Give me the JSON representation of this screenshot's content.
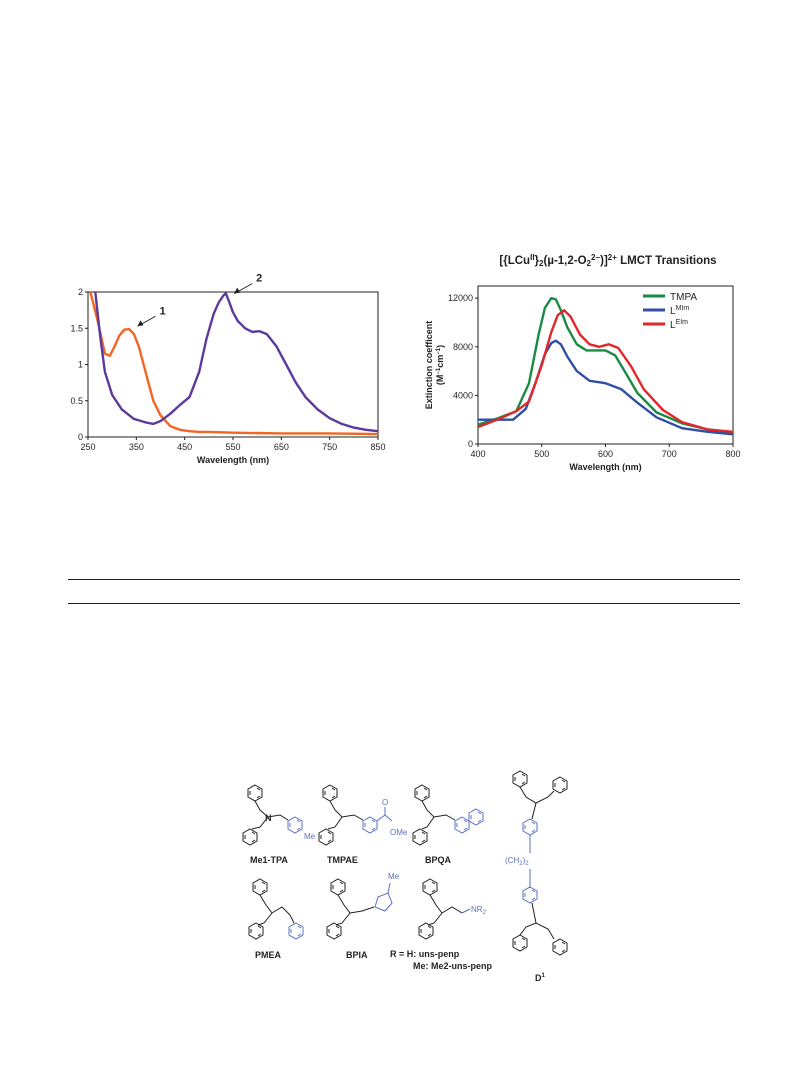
{
  "figures": {
    "left_chart": {
      "chart_data": {
        "type": "line",
        "title": "",
        "xlabel": "Wavelength (nm)",
        "ylabel": "",
        "xlim": [
          250,
          850
        ],
        "ylim": [
          0,
          2
        ],
        "xticks": [
          "250",
          "350",
          "450",
          "550",
          "650",
          "750",
          "850"
        ],
        "yticks": [
          "0",
          "0.5",
          "1",
          "1.5",
          "2"
        ],
        "grid": false,
        "series": [
          {
            "name": "1",
            "color": "#f26522",
            "x": [
              255,
              270,
              285,
              295,
              305,
              315,
              325,
              335,
              345,
              355,
              365,
              375,
              385,
              400,
              420,
              440,
              460,
              480,
              500,
              550,
              650,
              750,
              850
            ],
            "y": [
              2.0,
              1.6,
              1.15,
              1.12,
              1.25,
              1.4,
              1.48,
              1.49,
              1.42,
              1.25,
              1.0,
              0.75,
              0.5,
              0.3,
              0.15,
              0.1,
              0.08,
              0.07,
              0.07,
              0.06,
              0.05,
              0.05,
              0.04
            ]
          },
          {
            "name": "2",
            "color": "#5b3a9e",
            "x": [
              265,
              275,
              285,
              300,
              320,
              345,
              370,
              385,
              400,
              420,
              440,
              460,
              480,
              495,
              510,
              520,
              530,
              535,
              540,
              550,
              560,
              575,
              590,
              605,
              620,
              640,
              660,
              680,
              700,
              725,
              750,
              775,
              800,
              825,
              850
            ],
            "y": [
              2.0,
              1.4,
              0.9,
              0.58,
              0.38,
              0.25,
              0.2,
              0.18,
              0.22,
              0.32,
              0.44,
              0.55,
              0.9,
              1.35,
              1.7,
              1.85,
              1.95,
              1.98,
              1.9,
              1.72,
              1.6,
              1.5,
              1.45,
              1.46,
              1.42,
              1.25,
              1.0,
              0.75,
              0.55,
              0.38,
              0.26,
              0.18,
              0.13,
              0.1,
              0.08
            ]
          }
        ],
        "annotations": [
          {
            "text": "1",
            "x": 340,
            "y": 1.5
          },
          {
            "text": "2",
            "x": 540,
            "y": 1.95
          }
        ]
      }
    },
    "right_chart": {
      "chart_data": {
        "type": "line",
        "title": "[{LCu^II}2(µ-1,2-O2^2−)]^2+ LMCT Transitions",
        "xlabel": "Wavelength (nm)",
        "ylabel": "Extinction coefficent (M−1cm−1)",
        "xlim": [
          400,
          800
        ],
        "ylim": [
          0,
          13000
        ],
        "xticks": [
          "400",
          "500",
          "600",
          "700",
          "800"
        ],
        "yticks": [
          "0",
          "4000",
          "8000",
          "12000"
        ],
        "legend_position": "top-right",
        "grid": false,
        "series": [
          {
            "name": "TMPA",
            "color": "#1a8a45",
            "x": [
              400,
              430,
              460,
              480,
              495,
              505,
              515,
              522,
              530,
              540,
              555,
              570,
              585,
              600,
              615,
              630,
              650,
              680,
              720,
              760,
              800
            ],
            "y": [
              1600,
              2100,
              2700,
              5000,
              9000,
              11200,
              12000,
              11900,
              11000,
              9600,
              8200,
              7700,
              7700,
              7700,
              7300,
              6000,
              4200,
              2600,
              1700,
              1200,
              900
            ]
          },
          {
            "name": "L^MIm",
            "color": "#2e4fa3",
            "x": [
              400,
              430,
              455,
              475,
              490,
              505,
              515,
              522,
              530,
              540,
              555,
              575,
              600,
              625,
              650,
              680,
              720,
              760,
              800
            ],
            "y": [
              2000,
              2000,
              2000,
              2900,
              5000,
              7400,
              8300,
              8500,
              8200,
              7200,
              6000,
              5200,
              5000,
              4500,
              3400,
              2200,
              1300,
              1000,
              800
            ]
          },
          {
            "name": "L^EIm",
            "color": "#e2262a",
            "x": [
              400,
              430,
              460,
              480,
              500,
              515,
              525,
              535,
              545,
              560,
              575,
              590,
              605,
              620,
              640,
              660,
              690,
              720,
              760,
              800
            ],
            "y": [
              1400,
              2000,
              2700,
              3500,
              6500,
              9200,
              10600,
              11000,
              10500,
              9000,
              8200,
              8000,
              8200,
              7900,
              6400,
              4500,
              2800,
              1800,
              1200,
              1000
            ]
          }
        ]
      }
    },
    "structures": {
      "labels": [
        "Me1-TPA",
        "TMPAE",
        "BPQA",
        "D1",
        "PMEA",
        "BPIA",
        "R =  H: uns-penp",
        "Me: Me2-uns-penp"
      ],
      "substituents": {
        "me": "Me",
        "ome": "OMe",
        "o": "O",
        "n": "N",
        "me_bpia": "Me",
        "nr2": "NR",
        "nr2_sub": "2",
        "chain": "(CH",
        "chain_sub": "2",
        "chain_close": ")",
        "chain_count": "2"
      }
    }
  }
}
